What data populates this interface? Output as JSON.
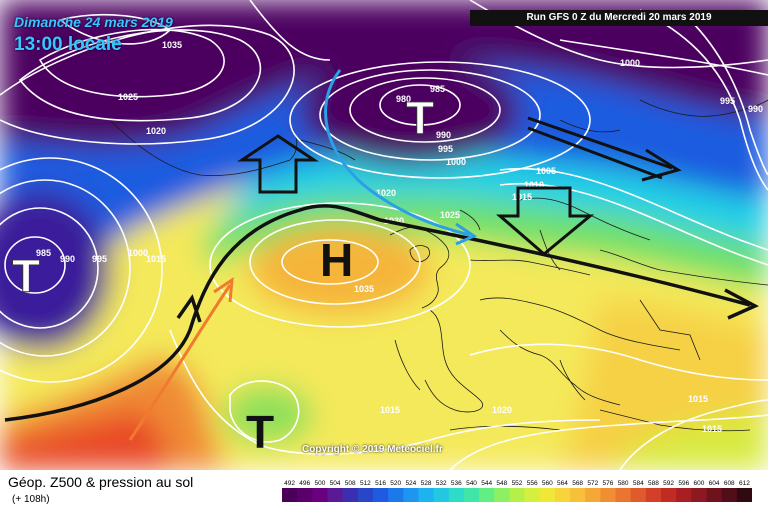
{
  "header": {
    "date": "Dimanche 24 mars 2019",
    "time": "13:00 locale",
    "run": "Run GFS 0 Z du Mercredi 20 mars 2019"
  },
  "footer": {
    "title": "Géop. Z500 & pression au sol",
    "lead": "(+ 108h)",
    "copyright": "Copyright © 2019 Meteociel.fr"
  },
  "pressure_systems": [
    {
      "name": "low-north-atlantic",
      "letter": "T"
    },
    {
      "name": "low-west-atlantic",
      "letter": "T"
    },
    {
      "name": "high-west-europe",
      "letter": "H"
    },
    {
      "name": "low-southwest",
      "letter": "T"
    }
  ],
  "isobar_labels": [
    "1035",
    "1025",
    "1020",
    "985",
    "990",
    "995",
    "1000",
    "980",
    "985",
    "990",
    "995",
    "1000",
    "1005",
    "1010",
    "1015",
    "1020",
    "1025",
    "1030",
    "1035",
    "1000",
    "995",
    "990",
    "1015",
    "1020",
    "1015",
    "1015",
    "1015"
  ],
  "legend": {
    "values": [
      "492",
      "496",
      "500",
      "504",
      "508",
      "512",
      "516",
      "520",
      "524",
      "528",
      "532",
      "536",
      "540",
      "544",
      "548",
      "552",
      "556",
      "560",
      "564",
      "568",
      "572",
      "576",
      "580",
      "584",
      "588",
      "592",
      "596",
      "600",
      "604",
      "608",
      "612"
    ],
    "colors": [
      "#4b0057",
      "#5a006a",
      "#6a0080",
      "#5a1a96",
      "#3a2fb0",
      "#2846c8",
      "#1f5be0",
      "#1d78ea",
      "#1e95f0",
      "#1cb3f0",
      "#22c8e0",
      "#2edac8",
      "#3fe6a8",
      "#62ee84",
      "#8cf062",
      "#b4f048",
      "#d6ef3e",
      "#f0e838",
      "#f7d43a",
      "#f7c03a",
      "#f4a838",
      "#f08e34",
      "#ea7430",
      "#e05a2c",
      "#d24028",
      "#c22a24",
      "#a81e22",
      "#8c1820",
      "#6e121c",
      "#520e18",
      "#300a10"
    ]
  },
  "colors": {
    "deep": "#4b0060",
    "blue": "#1f5be0",
    "cyan": "#22d0e6",
    "green": "#6ee06a",
    "yellow": "#f4e95a",
    "orange": "#f5a23a",
    "red": "#e84a28",
    "isobar": "#ffffff",
    "arrow-jet": "#111111",
    "arrow-warm": "#f07a30",
    "arrow-cold": "#2aa0e6"
  }
}
